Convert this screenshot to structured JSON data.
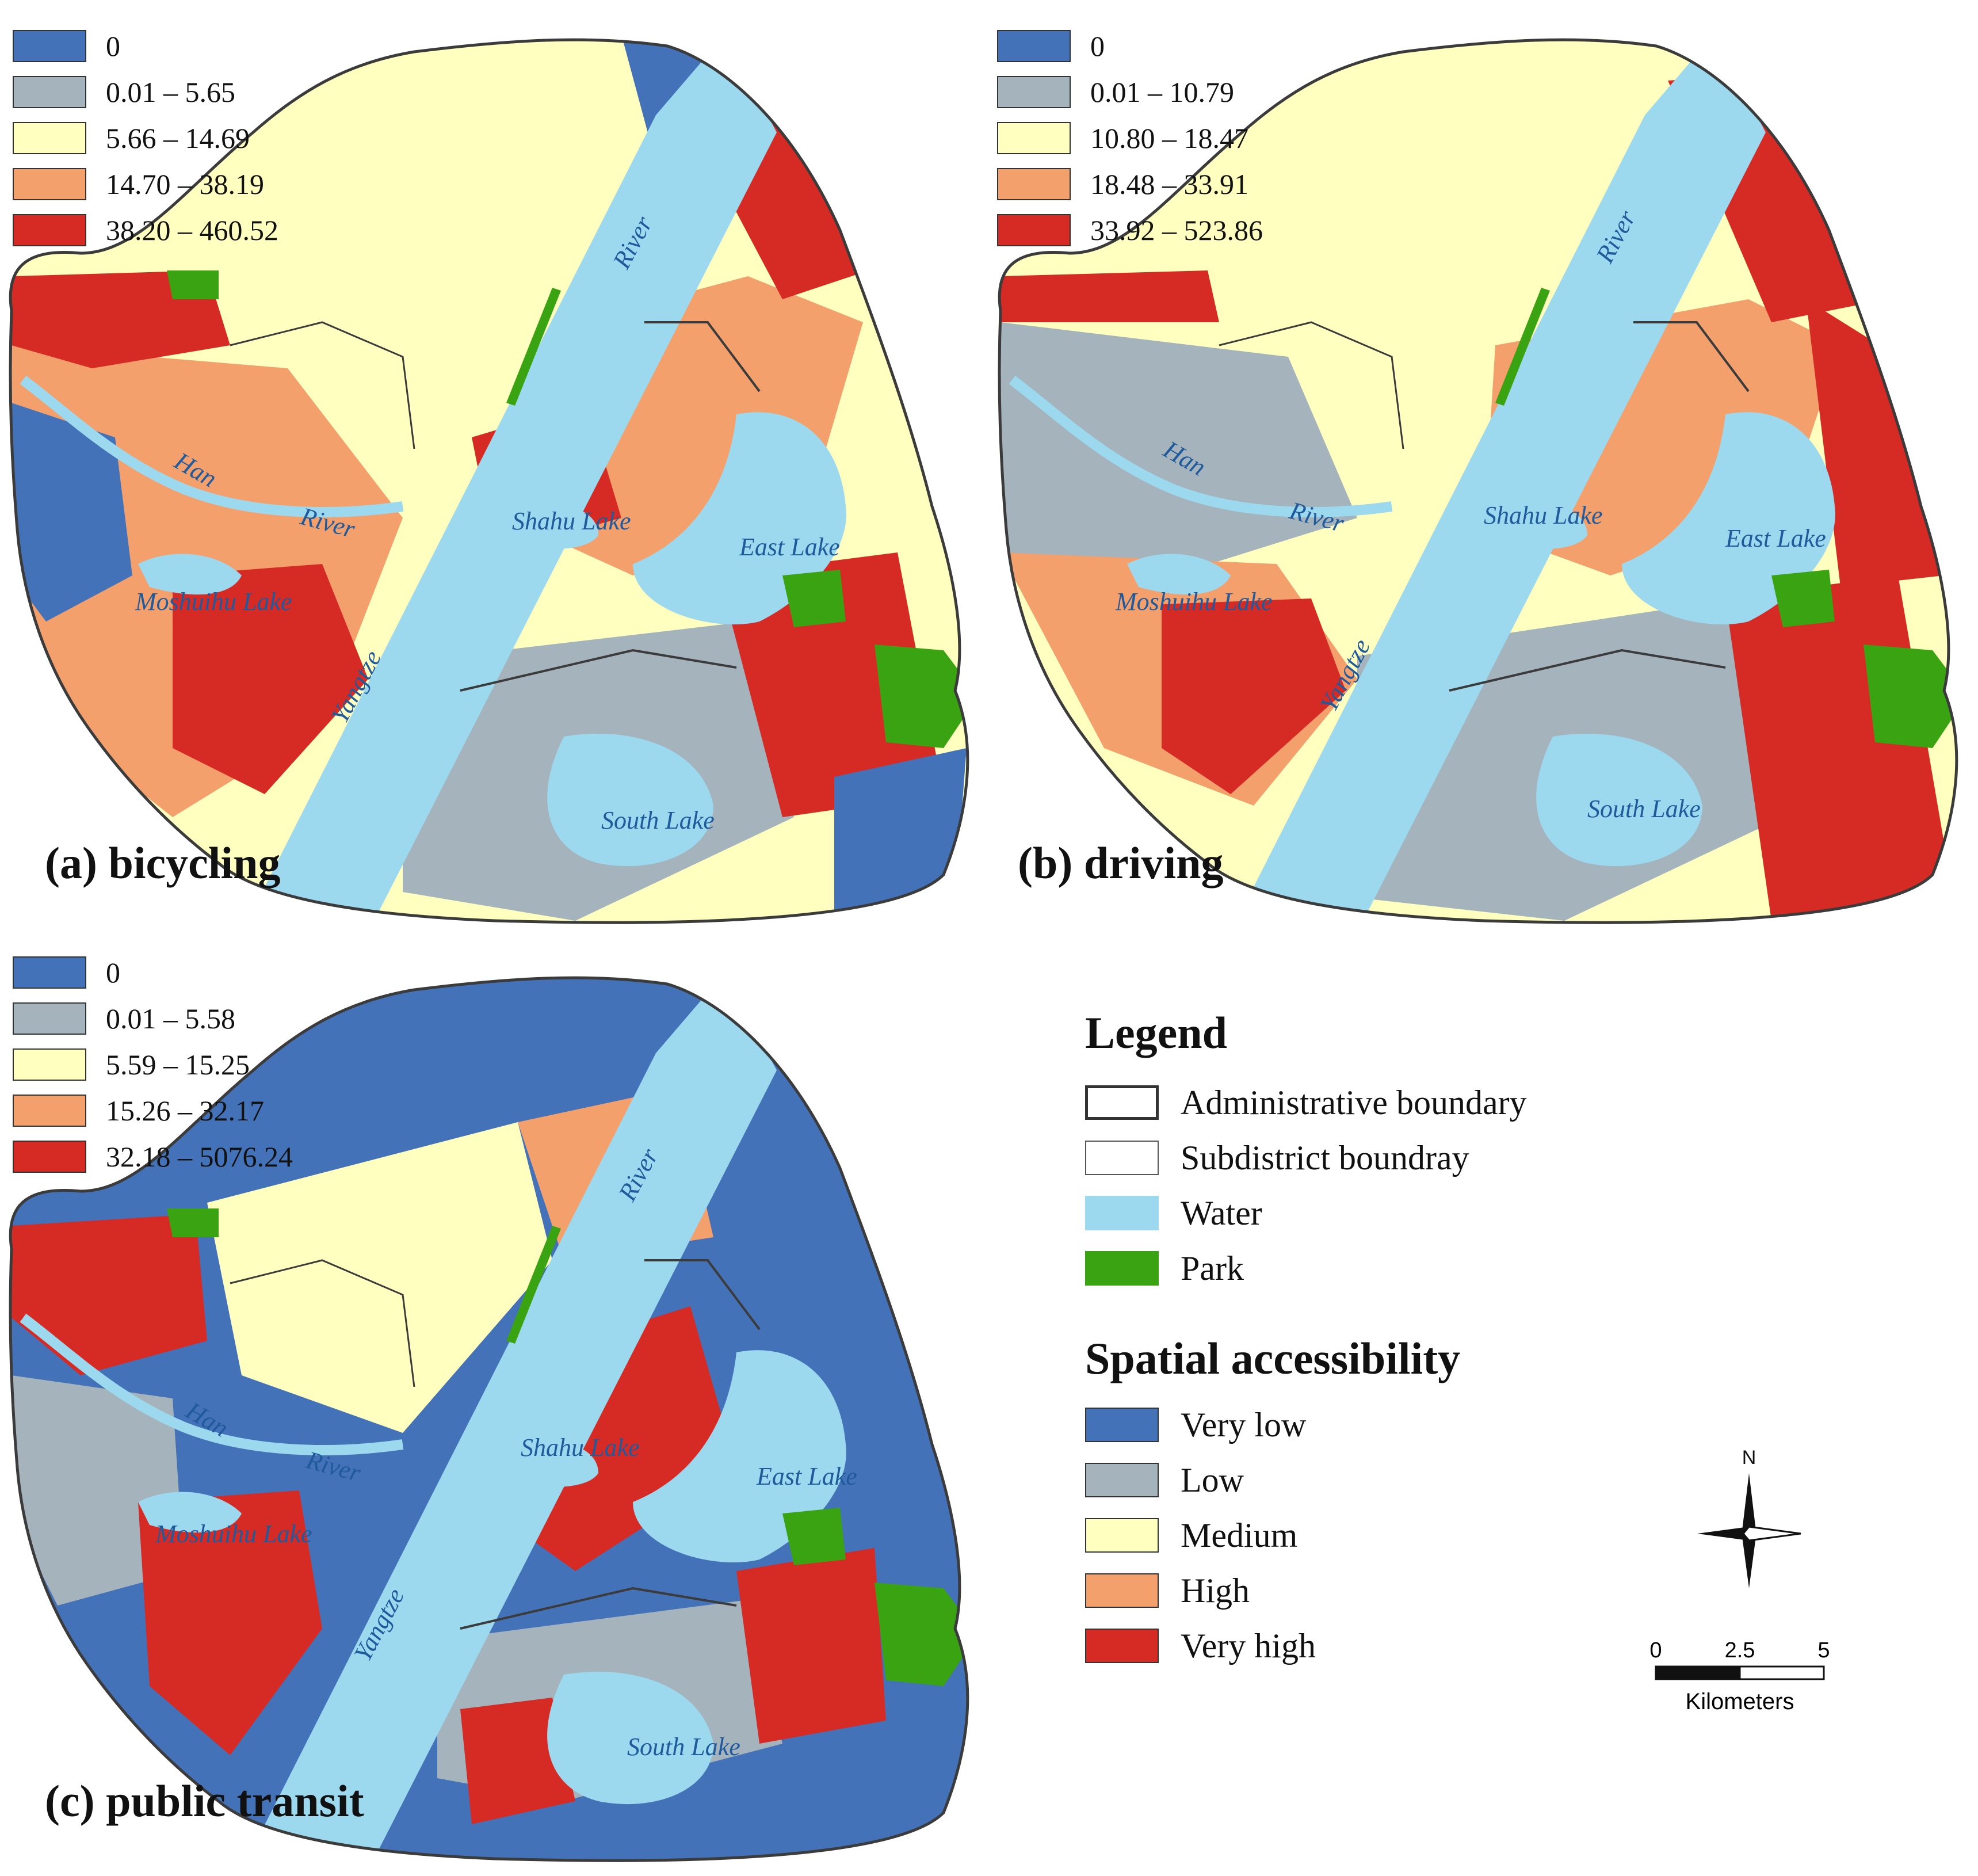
{
  "colors": {
    "very_low": "#4472b8",
    "low": "#a5b3bc",
    "medium": "#ffffc0",
    "high": "#f4a06c",
    "very_high": "#d62a25",
    "water": "#9cd9ee",
    "park": "#3aa312",
    "boundary": "#3b3b3b"
  },
  "panels": [
    {
      "title": "(a) bicycling",
      "classes": [
        "0",
        "0.01 – 5.65",
        "5.66 – 14.69",
        "14.70 – 38.19",
        "38.20 – 460.52"
      ]
    },
    {
      "title": "(b) driving",
      "classes": [
        "0",
        "0.01 – 10.79",
        "10.80 – 18.47",
        "18.48 – 33.91",
        "33.92 – 523.86"
      ]
    },
    {
      "title": "(c) public transit",
      "classes": [
        "0",
        "0.01 – 5.58",
        "5.59 – 15.25",
        "15.26 – 32.17",
        "32.18 – 5076.24"
      ]
    }
  ],
  "map_labels": {
    "yangtze": "Yangtze",
    "river_yangtze": "River",
    "han": "Han",
    "river_han": "River",
    "shahu": "Shahu Lake",
    "east": "East Lake",
    "south": "South Lake",
    "moshuihu": "Moshuihu Lake"
  },
  "legend": {
    "title": "Legend",
    "admin": "Administrative boundary",
    "subdistrict": "Subdistrict boundray",
    "water": "Water",
    "park": "Park",
    "access_title": "Spatial accessibility",
    "levels": [
      "Very low",
      "Low",
      "Medium",
      "High",
      "Very high"
    ]
  },
  "north": "N",
  "scale": {
    "ticks": [
      "0",
      "2.5",
      "5"
    ],
    "unit": "Kilometers"
  }
}
